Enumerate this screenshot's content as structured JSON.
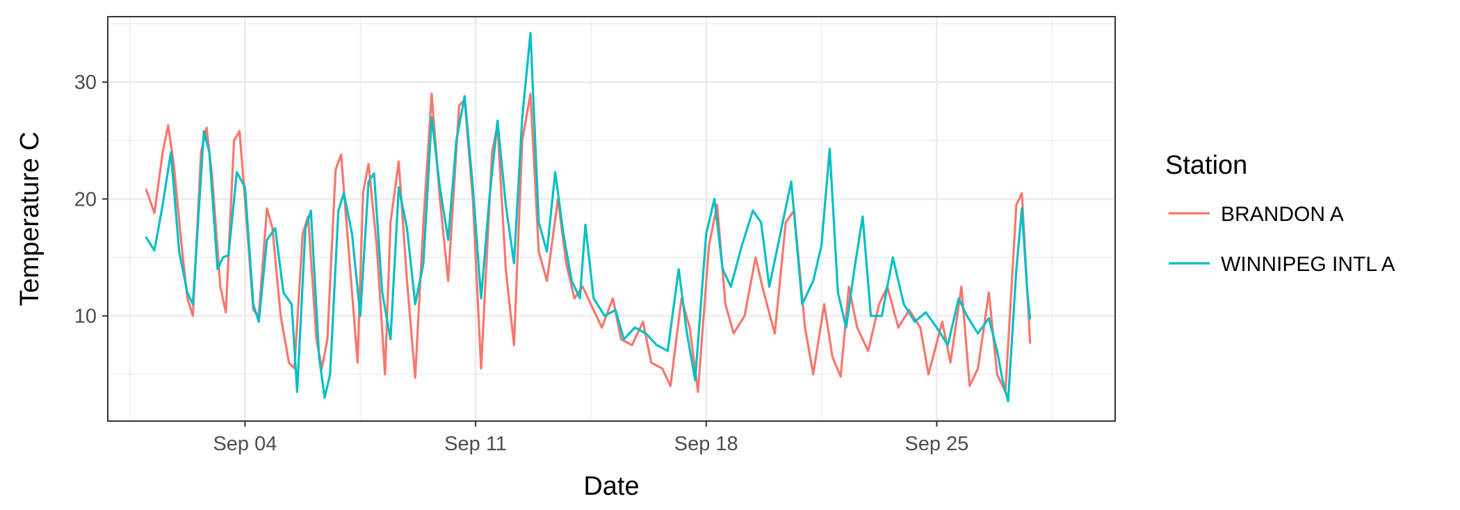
{
  "chart_data": {
    "type": "line",
    "title": "",
    "xlabel": "Date",
    "ylabel": "Temperature C",
    "x_axis": {
      "kind": "date",
      "range": [
        "2017-08-30T20:00",
        "2017-09-30T10:00"
      ],
      "ticks": [
        {
          "date": "2017-09-04",
          "label": "Sep 04"
        },
        {
          "date": "2017-09-11",
          "label": "Sep 11"
        },
        {
          "date": "2017-09-18",
          "label": "Sep 18"
        },
        {
          "date": "2017-09-25",
          "label": "Sep 25"
        }
      ]
    },
    "y_axis": {
      "range": [
        1,
        35.6
      ],
      "ticks": [
        10,
        20,
        30
      ]
    },
    "grid": true,
    "legend": {
      "title": "Station",
      "position": "right"
    },
    "series": [
      {
        "name": "BRANDON A",
        "color": "#F8766D",
        "points": [
          [
            "2017-09-01T00:00",
            20.8
          ],
          [
            "2017-09-01T06:00",
            18.8
          ],
          [
            "2017-09-01T12:00",
            24.0
          ],
          [
            "2017-09-01T16:00",
            26.3
          ],
          [
            "2017-09-01T20:00",
            23.0
          ],
          [
            "2017-09-02T02:00",
            15.8
          ],
          [
            "2017-09-02T06:00",
            11.5
          ],
          [
            "2017-09-02T10:00",
            10.0
          ],
          [
            "2017-09-02T16:00",
            24.0
          ],
          [
            "2017-09-02T20:00",
            26.1
          ],
          [
            "2017-09-03T00:00",
            22.0
          ],
          [
            "2017-09-03T06:00",
            12.5
          ],
          [
            "2017-09-03T10:00",
            10.3
          ],
          [
            "2017-09-03T16:00",
            25.0
          ],
          [
            "2017-09-03T20:00",
            25.8
          ],
          [
            "2017-09-04T00:00",
            20.0
          ],
          [
            "2017-09-04T06:00",
            10.5
          ],
          [
            "2017-09-04T10:00",
            10.0
          ],
          [
            "2017-09-04T16:00",
            19.2
          ],
          [
            "2017-09-04T20:00",
            17.5
          ],
          [
            "2017-09-05T02:00",
            10.0
          ],
          [
            "2017-09-05T08:00",
            6.0
          ],
          [
            "2017-09-05T12:00",
            5.5
          ],
          [
            "2017-09-05T18:00",
            17.0
          ],
          [
            "2017-09-05T22:00",
            18.5
          ],
          [
            "2017-09-06T04:00",
            8.0
          ],
          [
            "2017-09-06T08:00",
            5.5
          ],
          [
            "2017-09-06T12:00",
            8.0
          ],
          [
            "2017-09-06T18:00",
            22.5
          ],
          [
            "2017-09-06T22:00",
            23.8
          ],
          [
            "2017-09-07T04:00",
            15.0
          ],
          [
            "2017-09-07T10:00",
            6.0
          ],
          [
            "2017-09-07T14:00",
            20.5
          ],
          [
            "2017-09-07T18:00",
            23.0
          ],
          [
            "2017-09-08T00:00",
            16.0
          ],
          [
            "2017-09-08T06:00",
            5.0
          ],
          [
            "2017-09-08T10:00",
            18.0
          ],
          [
            "2017-09-08T16:00",
            23.2
          ],
          [
            "2017-09-08T22:00",
            13.0
          ],
          [
            "2017-09-09T04:00",
            4.7
          ],
          [
            "2017-09-09T10:00",
            18.0
          ],
          [
            "2017-09-09T16:00",
            29.0
          ],
          [
            "2017-09-09T22:00",
            20.0
          ],
          [
            "2017-09-10T04:00",
            13.0
          ],
          [
            "2017-09-10T12:00",
            28.0
          ],
          [
            "2017-09-10T16:00",
            28.5
          ],
          [
            "2017-09-10T22:00",
            20.0
          ],
          [
            "2017-09-11T04:00",
            5.5
          ],
          [
            "2017-09-11T12:00",
            24.0
          ],
          [
            "2017-09-11T16:00",
            26.3
          ],
          [
            "2017-09-11T22:00",
            14.0
          ],
          [
            "2017-09-12T04:00",
            7.5
          ],
          [
            "2017-09-12T10:00",
            25.0
          ],
          [
            "2017-09-12T16:00",
            29.0
          ],
          [
            "2017-09-12T22:00",
            15.5
          ],
          [
            "2017-09-13T04:00",
            13.0
          ],
          [
            "2017-09-13T12:00",
            20.0
          ],
          [
            "2017-09-13T18:00",
            14.5
          ],
          [
            "2017-09-14T00:00",
            11.5
          ],
          [
            "2017-09-14T06:00",
            12.5
          ],
          [
            "2017-09-14T14:00",
            10.5
          ],
          [
            "2017-09-14T20:00",
            9.0
          ],
          [
            "2017-09-15T04:00",
            11.5
          ],
          [
            "2017-09-15T10:00",
            8.0
          ],
          [
            "2017-09-15T18:00",
            7.5
          ],
          [
            "2017-09-16T02:00",
            9.5
          ],
          [
            "2017-09-16T08:00",
            6.0
          ],
          [
            "2017-09-16T16:00",
            5.5
          ],
          [
            "2017-09-16T22:00",
            4.0
          ],
          [
            "2017-09-17T06:00",
            11.5
          ],
          [
            "2017-09-17T12:00",
            9.0
          ],
          [
            "2017-09-17T18:00",
            3.5
          ],
          [
            "2017-09-18T02:00",
            16.0
          ],
          [
            "2017-09-18T08:00",
            19.5
          ],
          [
            "2017-09-18T14:00",
            11.0
          ],
          [
            "2017-09-18T20:00",
            8.5
          ],
          [
            "2017-09-19T04:00",
            10.0
          ],
          [
            "2017-09-19T12:00",
            15.0
          ],
          [
            "2017-09-19T18:00",
            12.0
          ],
          [
            "2017-09-20T02:00",
            8.5
          ],
          [
            "2017-09-20T10:00",
            18.0
          ],
          [
            "2017-09-20T16:00",
            19.0
          ],
          [
            "2017-09-21T00:00",
            9.0
          ],
          [
            "2017-09-21T06:00",
            5.0
          ],
          [
            "2017-09-21T14:00",
            11.0
          ],
          [
            "2017-09-21T20:00",
            6.5
          ],
          [
            "2017-09-22T02:00",
            4.8
          ],
          [
            "2017-09-22T08:00",
            12.5
          ],
          [
            "2017-09-22T14:00",
            9.0
          ],
          [
            "2017-09-22T22:00",
            7.0
          ],
          [
            "2017-09-23T06:00",
            11.0
          ],
          [
            "2017-09-23T12:00",
            12.5
          ],
          [
            "2017-09-23T20:00",
            9.0
          ],
          [
            "2017-09-24T04:00",
            10.5
          ],
          [
            "2017-09-24T12:00",
            9.0
          ],
          [
            "2017-09-24T18:00",
            5.0
          ],
          [
            "2017-09-25T04:00",
            9.5
          ],
          [
            "2017-09-25T10:00",
            6.0
          ],
          [
            "2017-09-25T18:00",
            12.5
          ],
          [
            "2017-09-26T00:00",
            4.0
          ],
          [
            "2017-09-26T06:00",
            5.5
          ],
          [
            "2017-09-26T14:00",
            12.0
          ],
          [
            "2017-09-26T20:00",
            5.0
          ],
          [
            "2017-09-27T02:00",
            3.5
          ],
          [
            "2017-09-27T10:00",
            19.5
          ],
          [
            "2017-09-27T14:00",
            20.5
          ],
          [
            "2017-09-27T18:00",
            12.0
          ],
          [
            "2017-09-27T20:00",
            7.7
          ]
        ]
      },
      {
        "name": "WINNIPEG INTL A",
        "color": "#00BFC4",
        "points": [
          [
            "2017-09-01T00:00",
            16.7
          ],
          [
            "2017-09-01T06:00",
            15.6
          ],
          [
            "2017-09-01T12:00",
            19.5
          ],
          [
            "2017-09-01T18:00",
            24.0
          ],
          [
            "2017-09-02T00:00",
            15.5
          ],
          [
            "2017-09-02T06:00",
            12.0
          ],
          [
            "2017-09-02T10:00",
            11.0
          ],
          [
            "2017-09-02T18:00",
            25.8
          ],
          [
            "2017-09-02T22:00",
            24.0
          ],
          [
            "2017-09-03T04:00",
            14.0
          ],
          [
            "2017-09-03T08:00",
            15.0
          ],
          [
            "2017-09-03T12:00",
            15.2
          ],
          [
            "2017-09-03T18:00",
            22.3
          ],
          [
            "2017-09-04T00:00",
            21.0
          ],
          [
            "2017-09-04T06:00",
            11.0
          ],
          [
            "2017-09-04T10:00",
            9.5
          ],
          [
            "2017-09-04T16:00",
            16.5
          ],
          [
            "2017-09-04T22:00",
            17.5
          ],
          [
            "2017-09-05T04:00",
            12.0
          ],
          [
            "2017-09-05T10:00",
            11.0
          ],
          [
            "2017-09-05T14:00",
            3.5
          ],
          [
            "2017-09-05T20:00",
            17.5
          ],
          [
            "2017-09-06T00:00",
            19.0
          ],
          [
            "2017-09-06T06:00",
            6.5
          ],
          [
            "2017-09-06T10:00",
            3.0
          ],
          [
            "2017-09-06T14:00",
            5.0
          ],
          [
            "2017-09-06T20:00",
            19.0
          ],
          [
            "2017-09-07T00:00",
            20.5
          ],
          [
            "2017-09-07T06:00",
            17.0
          ],
          [
            "2017-09-07T12:00",
            10.0
          ],
          [
            "2017-09-07T18:00",
            21.5
          ],
          [
            "2017-09-07T22:00",
            22.2
          ],
          [
            "2017-09-08T04:00",
            12.0
          ],
          [
            "2017-09-08T10:00",
            8.0
          ],
          [
            "2017-09-08T16:00",
            21.0
          ],
          [
            "2017-09-08T22:00",
            17.5
          ],
          [
            "2017-09-09T04:00",
            11.0
          ],
          [
            "2017-09-09T10:00",
            14.5
          ],
          [
            "2017-09-09T16:00",
            27.0
          ],
          [
            "2017-09-09T22:00",
            21.0
          ],
          [
            "2017-09-10T04:00",
            16.5
          ],
          [
            "2017-09-10T10:00",
            25.0
          ],
          [
            "2017-09-10T16:00",
            28.8
          ],
          [
            "2017-09-10T22:00",
            21.0
          ],
          [
            "2017-09-11T04:00",
            11.5
          ],
          [
            "2017-09-11T10:00",
            20.0
          ],
          [
            "2017-09-11T16:00",
            26.7
          ],
          [
            "2017-09-11T22:00",
            19.5
          ],
          [
            "2017-09-12T04:00",
            14.5
          ],
          [
            "2017-09-12T10:00",
            27.0
          ],
          [
            "2017-09-12T16:00",
            34.2
          ],
          [
            "2017-09-12T22:00",
            18.0
          ],
          [
            "2017-09-13T04:00",
            15.5
          ],
          [
            "2017-09-13T10:00",
            22.3
          ],
          [
            "2017-09-13T16:00",
            17.0
          ],
          [
            "2017-09-13T22:00",
            13.0
          ],
          [
            "2017-09-14T04:00",
            11.5
          ],
          [
            "2017-09-14T08:00",
            17.8
          ],
          [
            "2017-09-14T14:00",
            11.5
          ],
          [
            "2017-09-14T22:00",
            10.0
          ],
          [
            "2017-09-15T06:00",
            10.5
          ],
          [
            "2017-09-15T12:00",
            8.0
          ],
          [
            "2017-09-15T20:00",
            9.0
          ],
          [
            "2017-09-16T04:00",
            8.5
          ],
          [
            "2017-09-16T12:00",
            7.5
          ],
          [
            "2017-09-16T20:00",
            7.0
          ],
          [
            "2017-09-17T04:00",
            14.0
          ],
          [
            "2017-09-17T10:00",
            8.5
          ],
          [
            "2017-09-17T16:00",
            4.5
          ],
          [
            "2017-09-18T00:00",
            17.0
          ],
          [
            "2017-09-18T06:00",
            20.0
          ],
          [
            "2017-09-18T12:00",
            14.0
          ],
          [
            "2017-09-18T18:00",
            12.5
          ],
          [
            "2017-09-19T02:00",
            16.0
          ],
          [
            "2017-09-19T10:00",
            19.0
          ],
          [
            "2017-09-19T16:00",
            18.0
          ],
          [
            "2017-09-19T22:00",
            12.5
          ],
          [
            "2017-09-20T06:00",
            17.0
          ],
          [
            "2017-09-20T14:00",
            21.5
          ],
          [
            "2017-09-20T22:00",
            11.0
          ],
          [
            "2017-09-21T06:00",
            13.0
          ],
          [
            "2017-09-21T12:00",
            16.0
          ],
          [
            "2017-09-21T18:00",
            24.3
          ],
          [
            "2017-09-22T00:00",
            12.0
          ],
          [
            "2017-09-22T06:00",
            9.0
          ],
          [
            "2017-09-22T12:00",
            14.0
          ],
          [
            "2017-09-22T18:00",
            18.5
          ],
          [
            "2017-09-23T00:00",
            10.0
          ],
          [
            "2017-09-23T08:00",
            10.0
          ],
          [
            "2017-09-23T16:00",
            15.0
          ],
          [
            "2017-09-24T00:00",
            11.0
          ],
          [
            "2017-09-24T08:00",
            9.5
          ],
          [
            "2017-09-24T16:00",
            10.3
          ],
          [
            "2017-09-25T00:00",
            9.0
          ],
          [
            "2017-09-25T08:00",
            7.5
          ],
          [
            "2017-09-25T16:00",
            11.5
          ],
          [
            "2017-09-25T22:00",
            10.0
          ],
          [
            "2017-09-26T06:00",
            8.5
          ],
          [
            "2017-09-26T14:00",
            9.8
          ],
          [
            "2017-09-26T20:00",
            7.0
          ],
          [
            "2017-09-27T00:00",
            4.5
          ],
          [
            "2017-09-27T04:00",
            2.7
          ],
          [
            "2017-09-27T10:00",
            14.0
          ],
          [
            "2017-09-27T14:00",
            19.2
          ],
          [
            "2017-09-27T18:00",
            12.0
          ],
          [
            "2017-09-27T20:00",
            9.8
          ]
        ]
      }
    ]
  }
}
